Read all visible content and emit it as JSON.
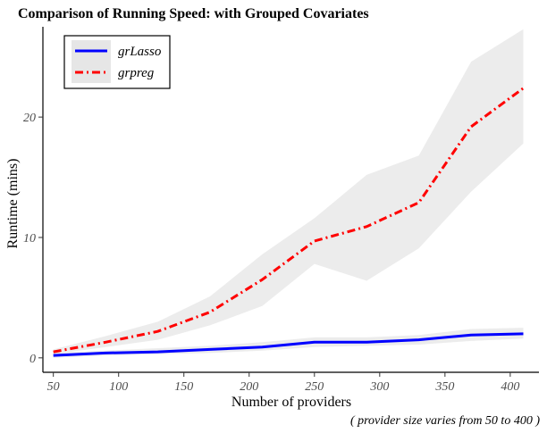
{
  "chart_data": {
    "type": "line",
    "title": "Comparison of Running Speed: with Grouped Covariates",
    "xlabel": "Number of providers",
    "ylabel": "Runtime (mins)",
    "caption": "( provider size varies from 50 to 400 )",
    "x": [
      50,
      90,
      130,
      170,
      210,
      250,
      290,
      330,
      370,
      410
    ],
    "xticks": [
      50,
      100,
      150,
      200,
      250,
      300,
      350,
      400
    ],
    "yticks": [
      0,
      10,
      20
    ],
    "xlim": [
      42,
      422
    ],
    "ylim": [
      -1.2,
      27.5
    ],
    "grid": false,
    "legend_position": "top-left",
    "series": [
      {
        "name": "grLasso",
        "color": "#0000ff",
        "line_style": "solid",
        "values": [
          0.2,
          0.4,
          0.5,
          0.7,
          0.9,
          1.3,
          1.3,
          1.5,
          1.9,
          2.0
        ],
        "band_lower": [
          0.0,
          0.2,
          0.3,
          0.4,
          0.6,
          0.9,
          1.0,
          1.1,
          1.4,
          1.6
        ],
        "band_upper": [
          0.4,
          0.6,
          0.8,
          1.0,
          1.3,
          1.7,
          1.7,
          1.9,
          2.4,
          2.5
        ]
      },
      {
        "name": "grpreg",
        "color": "#ff0000",
        "line_style": "dashdot",
        "values": [
          0.5,
          1.3,
          2.2,
          3.8,
          6.5,
          9.7,
          10.9,
          12.9,
          19.2,
          22.4
        ],
        "band_lower": [
          0.3,
          0.9,
          1.5,
          2.7,
          4.3,
          7.8,
          6.4,
          9.1,
          13.8,
          17.8
        ],
        "band_upper": [
          0.7,
          1.8,
          3.0,
          5.1,
          8.6,
          11.6,
          15.2,
          16.8,
          24.6,
          27.3
        ]
      }
    ],
    "band_color": "#e6e6e6"
  }
}
